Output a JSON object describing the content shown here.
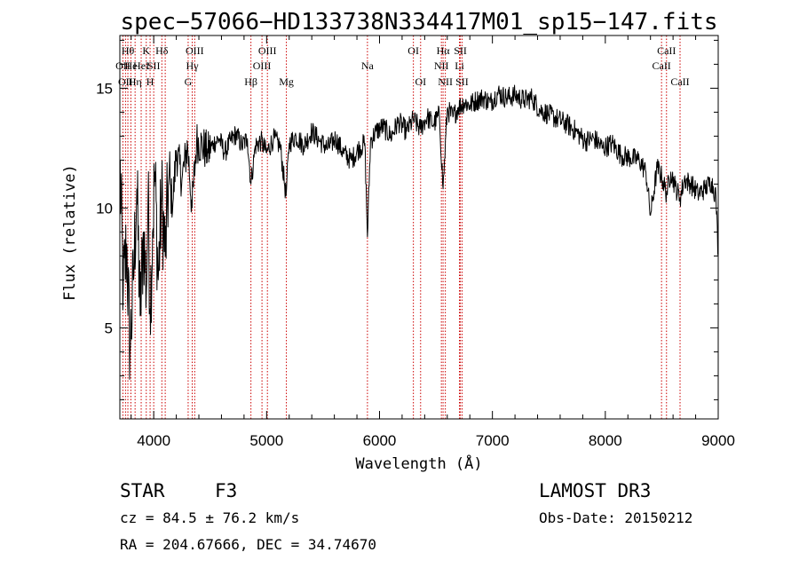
{
  "chart_data": {
    "type": "line",
    "title": "spec−57066−HD133738N334417M01_sp15−147.fits",
    "xlabel": "Wavelength (Å)",
    "ylabel": "Flux (relative)",
    "xlim": [
      3700,
      9000
    ],
    "ylim": [
      1.2,
      17.2
    ],
    "xticks": [
      4000,
      5000,
      6000,
      7000,
      8000,
      9000
    ],
    "yticks": [
      5,
      10,
      15
    ],
    "series": [
      {
        "name": "spectrum",
        "x": [
          3700,
          3730,
          3760,
          3790,
          3820,
          3850,
          3880,
          3910,
          3935,
          3950,
          3968,
          3990,
          4010,
          4040,
          4070,
          4102,
          4130,
          4170,
          4200,
          4250,
          4300,
          4340,
          4380,
          4430,
          4480,
          4530,
          4580,
          4630,
          4680,
          4730,
          4780,
          4830,
          4861,
          4900,
          4950,
          5000,
          5060,
          5120,
          5172,
          5200,
          5260,
          5330,
          5400,
          5470,
          5540,
          5610,
          5680,
          5750,
          5820,
          5870,
          5893,
          5920,
          5970,
          6030,
          6100,
          6170,
          6240,
          6300,
          6360,
          6420,
          6480,
          6530,
          6563,
          6600,
          6650,
          6700,
          6750,
          6800,
          6860,
          6920,
          6980,
          7050,
          7120,
          7200,
          7280,
          7350,
          7420,
          7500,
          7580,
          7660,
          7740,
          7820,
          7900,
          7980,
          8060,
          8140,
          8220,
          8300,
          8360,
          8400,
          8460,
          8500,
          8542,
          8580,
          8620,
          8662,
          8700,
          8760,
          8820,
          8880,
          8940,
          8980,
          9000
        ],
        "y": [
          12.0,
          6.5,
          8.5,
          4.0,
          7.0,
          10.8,
          5.5,
          9.0,
          6.5,
          10.5,
          5.8,
          9.0,
          11.5,
          7.0,
          10.5,
          8.0,
          11.0,
          10.2,
          12.4,
          11.2,
          12.6,
          10.0,
          12.8,
          12.6,
          12.3,
          12.7,
          12.9,
          12.3,
          12.8,
          13.1,
          12.6,
          12.9,
          11.0,
          12.6,
          12.8,
          12.3,
          12.9,
          12.6,
          10.5,
          12.7,
          13.0,
          12.6,
          13.2,
          12.8,
          12.5,
          12.9,
          12.3,
          12.0,
          12.5,
          12.7,
          8.8,
          12.8,
          13.2,
          13.4,
          13.0,
          13.6,
          13.2,
          13.7,
          13.3,
          13.8,
          13.5,
          13.9,
          10.8,
          14.1,
          13.8,
          14.2,
          14.4,
          14.3,
          14.5,
          14.6,
          14.4,
          14.8,
          14.6,
          14.7,
          14.5,
          14.6,
          14.1,
          13.9,
          13.7,
          13.5,
          13.2,
          12.8,
          12.9,
          12.5,
          12.7,
          12.2,
          12.1,
          12.0,
          11.5,
          9.7,
          11.7,
          11.3,
          10.6,
          11.5,
          10.9,
          10.4,
          11.2,
          11.0,
          10.6,
          10.8,
          11.1,
          10.5,
          8.0
        ]
      }
    ],
    "spectral_lines": [
      {
        "wavelength": 3727,
        "label": "OII",
        "row": 2
      },
      {
        "wavelength": 3750,
        "label": "OII",
        "row": 3
      },
      {
        "wavelength": 3771,
        "label": "Hθ",
        "row": 1
      },
      {
        "wavelength": 3798,
        "label": "He",
        "row": 2
      },
      {
        "wavelength": 3835,
        "label": "Hη",
        "row": 3
      },
      {
        "wavelength": 3889,
        "label": "HeI",
        "row": 2
      },
      {
        "wavelength": 3934,
        "label": "K",
        "row": 1
      },
      {
        "wavelength": 3968,
        "label": "H",
        "row": 3
      },
      {
        "wavelength": 4000,
        "label": "SII",
        "row": 2
      },
      {
        "wavelength": 4072,
        "label": "Hδ",
        "row": 1
      },
      {
        "wavelength": 4102,
        "label": "",
        "row": 0
      },
      {
        "wavelength": 4305,
        "label": "G",
        "row": 3
      },
      {
        "wavelength": 4341,
        "label": "Hγ",
        "row": 2
      },
      {
        "wavelength": 4363,
        "label": "OIII",
        "row": 1
      },
      {
        "wavelength": 4861,
        "label": "Hβ",
        "row": 3
      },
      {
        "wavelength": 4959,
        "label": "OIII",
        "row": 2
      },
      {
        "wavelength": 5007,
        "label": "OIII",
        "row": 1
      },
      {
        "wavelength": 5175,
        "label": "Mg",
        "row": 3
      },
      {
        "wavelength": 5893,
        "label": "Na",
        "row": 2
      },
      {
        "wavelength": 6300,
        "label": "OI",
        "row": 1
      },
      {
        "wavelength": 6364,
        "label": "OI",
        "row": 3
      },
      {
        "wavelength": 6548,
        "label": "NII",
        "row": 2
      },
      {
        "wavelength": 6563,
        "label": "Hα",
        "row": 1
      },
      {
        "wavelength": 6583,
        "label": "NII",
        "row": 3
      },
      {
        "wavelength": 6708,
        "label": "Li",
        "row": 2
      },
      {
        "wavelength": 6716,
        "label": "SII",
        "row": 1
      },
      {
        "wavelength": 6731,
        "label": "SII",
        "row": 3
      },
      {
        "wavelength": 8498,
        "label": "CaII",
        "row": 2
      },
      {
        "wavelength": 8542,
        "label": "CaII",
        "row": 1
      },
      {
        "wavelength": 8662,
        "label": "CaII",
        "row": 3
      }
    ]
  },
  "info": {
    "object_class": "STAR",
    "subclass": "F3",
    "survey": "LAMOST DR3",
    "cz": "cz = 84.5 ± 76.2 km/s",
    "obs_date": "Obs-Date: 20150212",
    "coords": "RA = 204.67666, DEC =  34.74670"
  }
}
